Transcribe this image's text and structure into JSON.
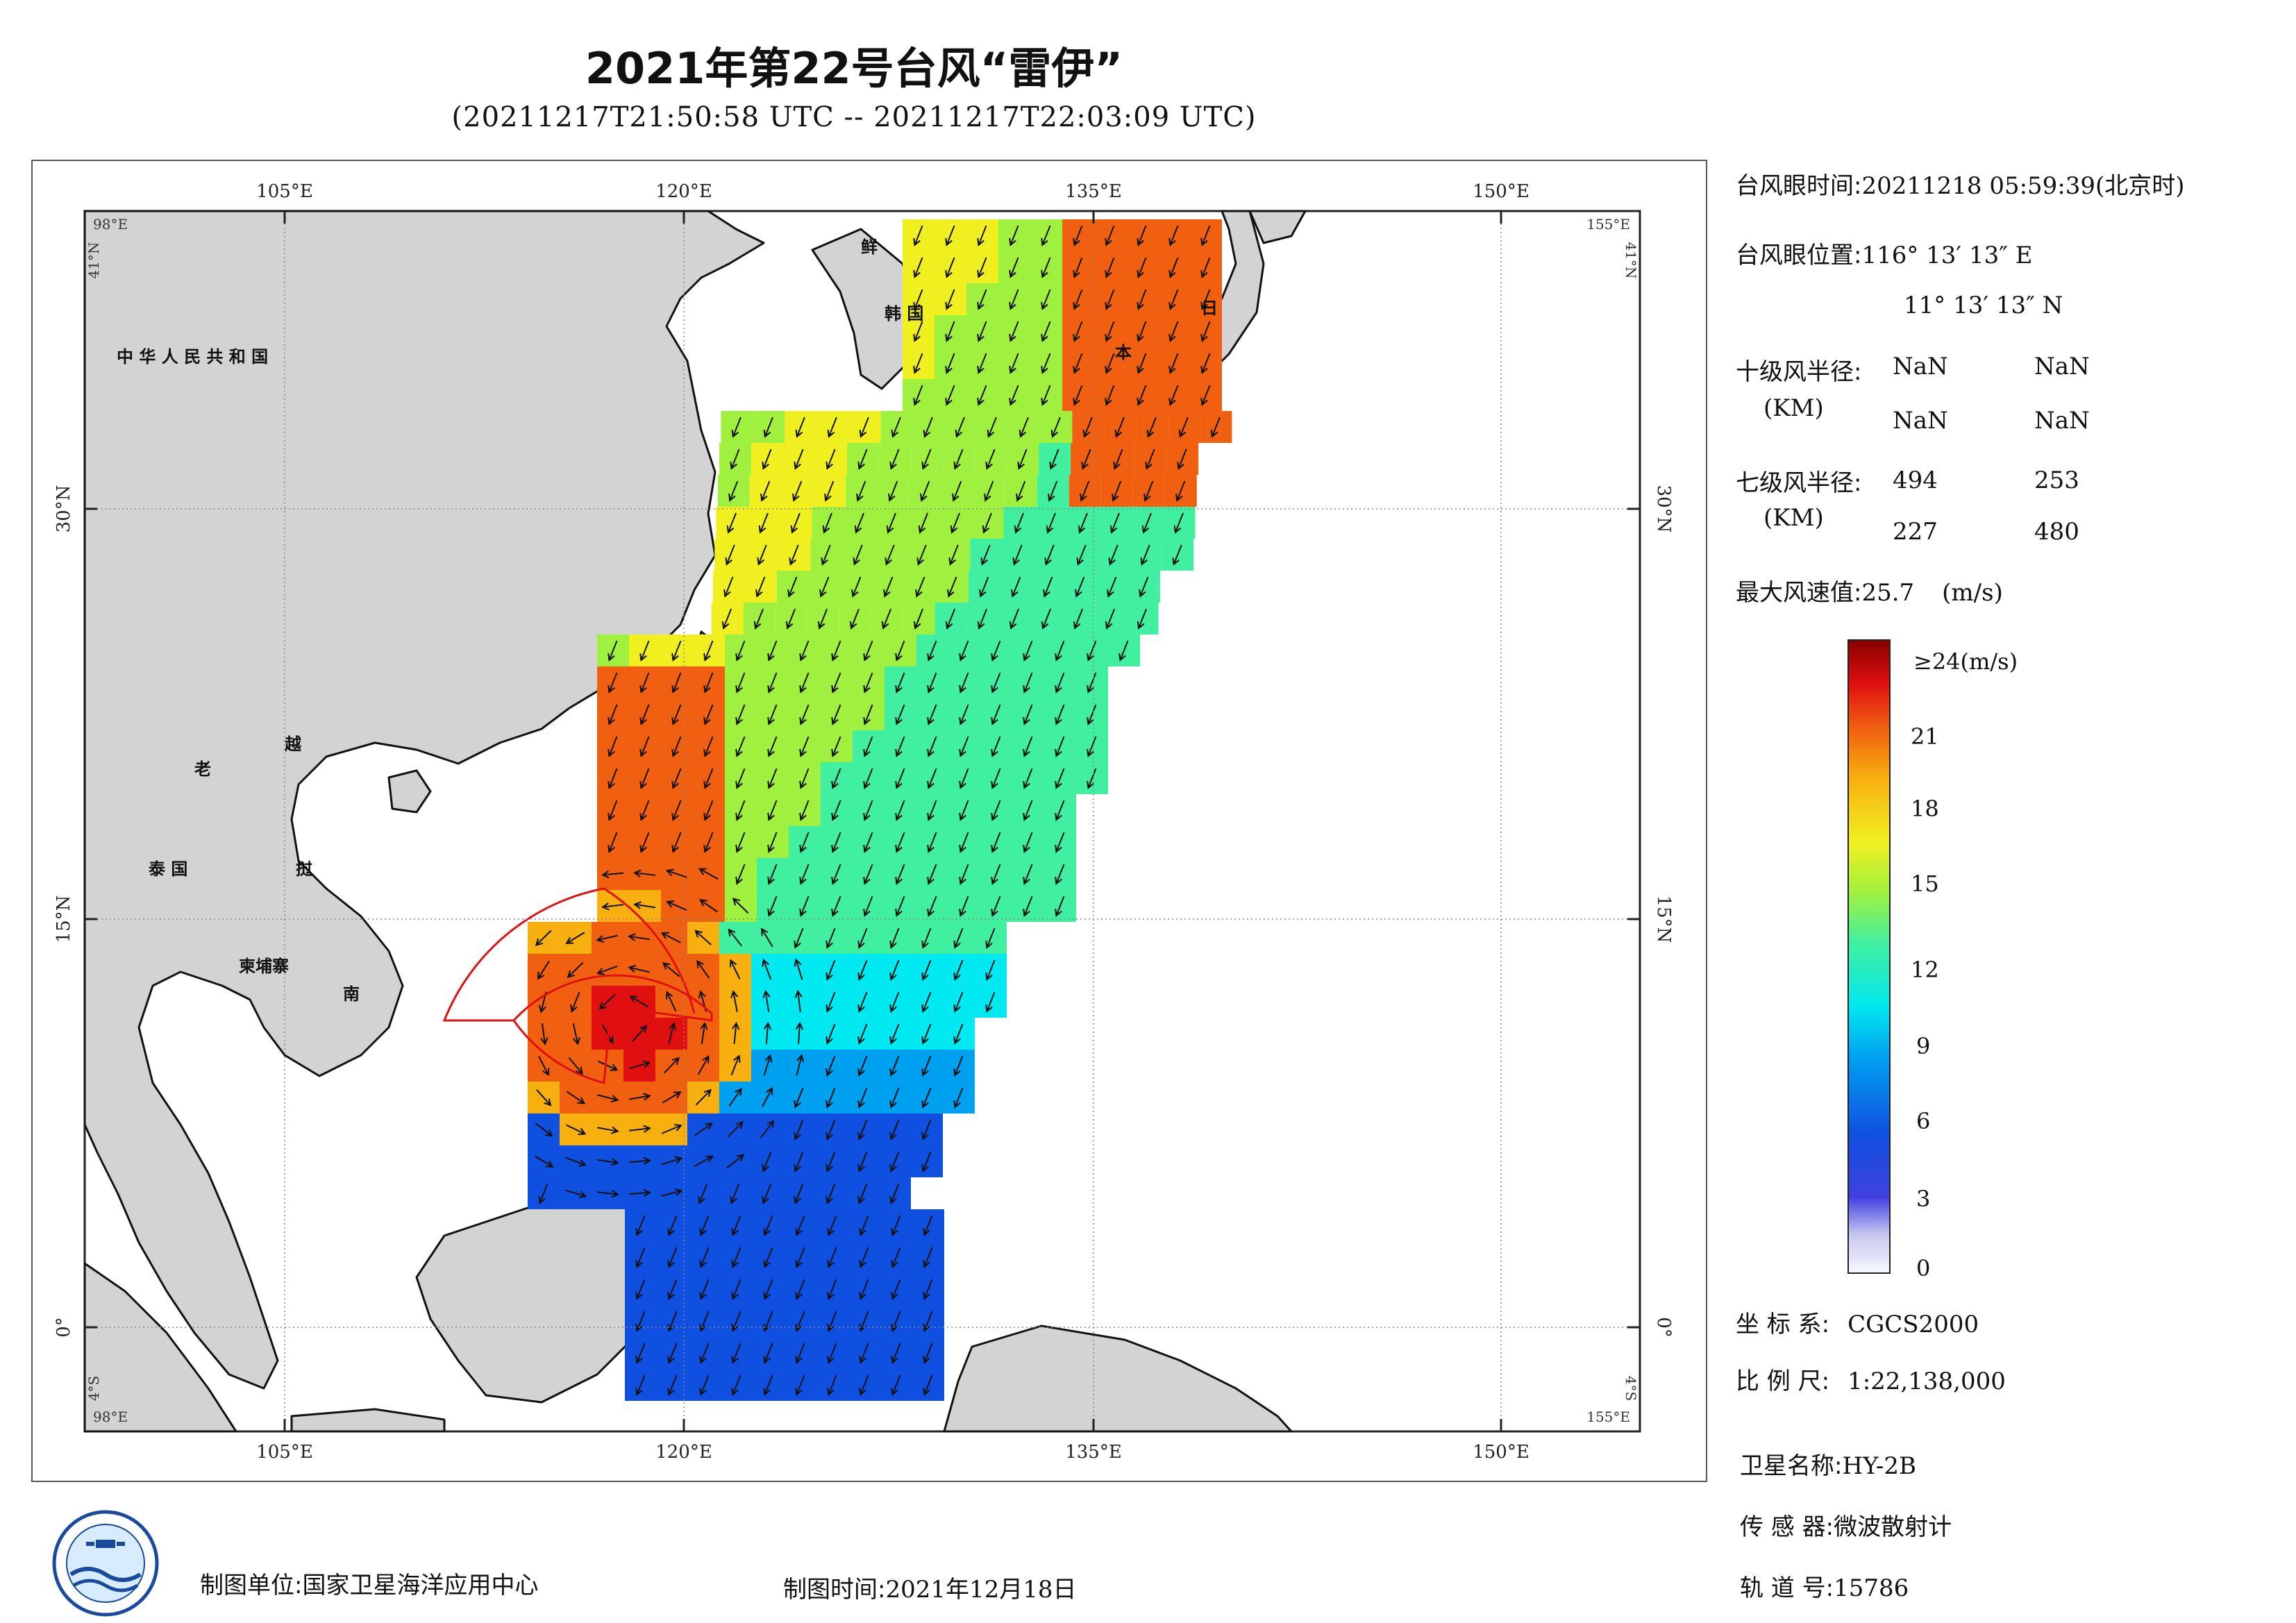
{
  "header": {
    "title": "2021年第22号台风“雷伊”",
    "subtitle": "(20211217T21:50:58 UTC -- 20211217T22:03:09 UTC)"
  },
  "map": {
    "lon_ticks": [
      "105°E",
      "120°E",
      "135°E",
      "150°E"
    ],
    "lat_ticks": [
      "30°N",
      "15°N",
      "0°"
    ],
    "corner_labels": {
      "tl_lon": "98°E",
      "tl_lat": "41°N",
      "tr_lon": "155°E",
      "tr_lat": "41°N",
      "bl_lon": "98°E",
      "bl_lat": "4°S",
      "br_lon": "155°E",
      "br_lat": "4°S"
    },
    "country_labels": {
      "china": "中 华 人 民 共 和 国",
      "laos": "老",
      "vietnam_1": "越",
      "vietnam_2": "南",
      "thailand": "泰 国",
      "cambodia": "柬埔寨",
      "korea_n": "鲜",
      "korea_s": "韩 国",
      "japan_1": "日",
      "japan_2": "本",
      "vietnam_mid": "挝"
    },
    "colors": {
      "land": "#d3d3d3",
      "ocean": "#ffffff",
      "coast": "#111111",
      "circle": "#e01010"
    }
  },
  "info": {
    "eye_time_label": "台风眼时间:",
    "eye_time_value": "20211218 05:59:39(北京时)",
    "eye_pos_label": "台风眼位置:",
    "eye_lon": "116° 13′ 13″ E",
    "eye_lat": "11° 13′ 13″ N",
    "r10_label": "十级风半径:",
    "r10_unit": "(KM)",
    "r10_values": [
      "NaN",
      "NaN",
      "NaN",
      "NaN"
    ],
    "r7_label": "七级风半径:",
    "r7_unit": "(KM)",
    "r7_values": [
      "494",
      "253",
      "227",
      "480"
    ],
    "max_wind_label": "最大风速值:",
    "max_wind_value": "25.7",
    "max_wind_unit": "(m/s)"
  },
  "colorbar": {
    "top_label": "≥24(m/s)",
    "ticks": [
      "21",
      "18",
      "15",
      "12",
      "9",
      "6",
      "3",
      "0"
    ],
    "colors": [
      "#f8f8ff",
      "#c8c8f0",
      "#4040e0",
      "#1050e0",
      "#00a0f0",
      "#00e8f0",
      "#40f0a0",
      "#a0f040",
      "#f0f020",
      "#f8b010",
      "#f06010",
      "#e01010",
      "#8a0000"
    ]
  },
  "meta": {
    "crs_label": "坐 标 系:",
    "crs_value": "CGCS2000",
    "scale_label": "比 例 尺:",
    "scale_value": "1:22,138,000",
    "sat_label": "卫星名称:",
    "sat_value": "HY-2B",
    "sensor_label": "传 感 器:",
    "sensor_value": "微波散射计",
    "orbit_label": "轨 道 号:",
    "orbit_value": "15786"
  },
  "footer": {
    "unit_label": "制图单位:",
    "unit_value": "国家卫星海洋应用中心",
    "date_label": "制图时间:",
    "date_value": "2021年12月18日"
  }
}
